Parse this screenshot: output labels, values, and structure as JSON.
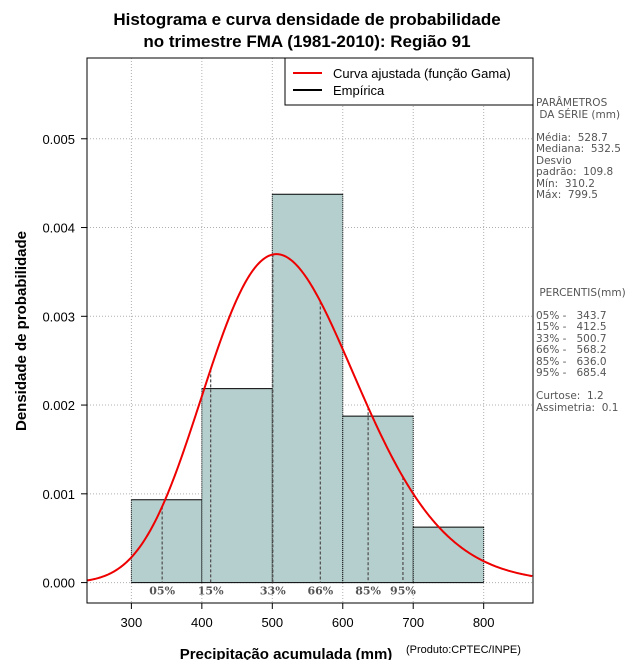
{
  "chart_data": {
    "type": "histogram",
    "title_lines": [
      "Histograma e curva densidade de probabilidade",
      "no trimestre FMA (1981-2010): Região 91"
    ],
    "xlabel": "Precipitação acumulada (mm)",
    "ylabel": "Densidade de probabilidade",
    "credit": "(Produto:CPTEC/INPE)",
    "xlim": [
      237,
      870
    ],
    "ylim": [
      -0.00023,
      0.00591
    ],
    "x_ticks": [
      300,
      400,
      500,
      600,
      700,
      800
    ],
    "y_ticks": [
      0.0,
      0.001,
      0.002,
      0.003,
      0.004,
      0.005
    ],
    "y_tick_labels": [
      "0.000",
      "0.001",
      "0.002",
      "0.003",
      "0.004",
      "0.005"
    ],
    "grid": true,
    "bins": [
      {
        "x0": 300,
        "x1": 400,
        "density": 0.000933
      },
      {
        "x0": 400,
        "x1": 500,
        "density": 0.002185
      },
      {
        "x0": 500,
        "x1": 600,
        "density": 0.004375
      },
      {
        "x0": 600,
        "x1": 700,
        "density": 0.001875
      },
      {
        "x0": 700,
        "x1": 800,
        "density": 0.000625
      }
    ],
    "bar_color": "#b5cfce",
    "curve": {
      "name": "Curva ajustada (função Gama)",
      "color": "#ee0000",
      "distribution": "gamma",
      "mean": 528.7,
      "sd": 109.8
    },
    "empirical": {
      "name": "Empírica",
      "color": "#000000"
    },
    "percentile_lines": [
      {
        "label": "05%",
        "value": 343.7
      },
      {
        "label": "15%",
        "value": 412.5
      },
      {
        "label": "33%",
        "value": 500.7
      },
      {
        "label": "66%",
        "value": 568.2
      },
      {
        "label": "85%",
        "value": 636.0
      },
      {
        "label": "95%",
        "value": 685.4
      }
    ],
    "legend_position": "top-right"
  },
  "panel": {
    "params_title_1": "PARÂMETROS",
    "params_title_2": " DA SÉRIE (mm)",
    "stats": [
      "Média:  528.7",
      "Mediana:  532.5",
      "Desvio",
      "padrão:  109.8",
      "Mín:  310.2",
      "Máx:  799.5"
    ],
    "percentis_title": " PERCENTIS(mm)",
    "percentis": [
      "05% -   343.7",
      "15% -   412.5",
      "33% -   500.7",
      "66% -   568.2",
      "85% -   636.0",
      "95% -   685.4"
    ],
    "shape": [
      "Curtose:  1.2",
      "Assimetria:  0.1"
    ]
  }
}
